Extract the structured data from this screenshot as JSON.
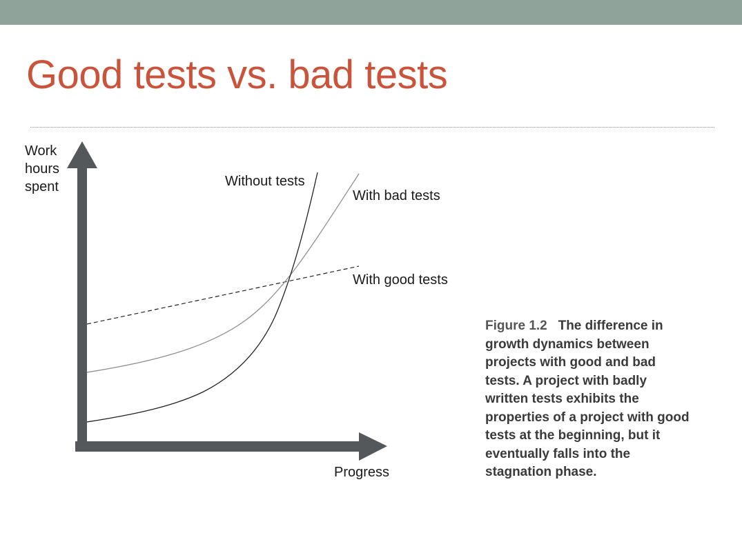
{
  "slide": {
    "title": "Good tests vs. bad tests",
    "colors": {
      "title": "#c9543b",
      "top_bar": "#90a39a",
      "axis": "#55585a"
    }
  },
  "diagram": {
    "y_axis_label_lines": [
      "Work",
      "hours",
      "spent"
    ],
    "x_axis_label": "Progress",
    "curves": [
      {
        "label": "Without tests",
        "style": "solid",
        "color": "#222222"
      },
      {
        "label": "With bad tests",
        "style": "solid",
        "color": "#8f8f8f"
      },
      {
        "label": "With good tests",
        "style": "dashed",
        "color": "#222222"
      }
    ]
  },
  "caption": {
    "figure_number": "Figure 1.2",
    "text": "The difference in growth dynamics between projects with good and bad tests. A project with badly written tests exhibits the properties of a project with good tests at the beginning, but it eventually falls into the stagnation phase."
  }
}
